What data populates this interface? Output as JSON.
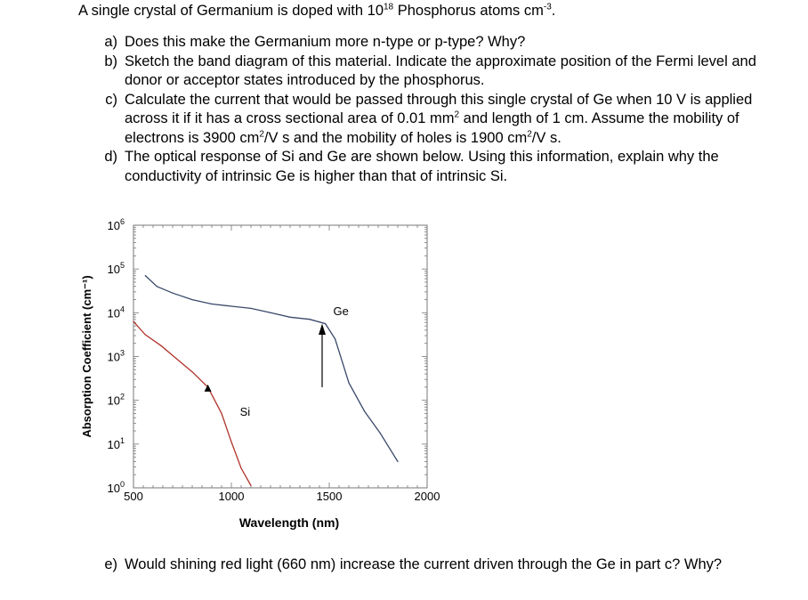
{
  "question": {
    "intro_pre": "A single crystal of Germanium is doped with 10",
    "intro_sup": "18",
    "intro_post": " Phosphorus atoms cm",
    "intro_sup2": "-3",
    "intro_end": ".",
    "parts": [
      {
        "label": "a)",
        "text": "Does this make the Germanium more n-type or p-type? Why?"
      },
      {
        "label": "b)",
        "text": "Sketch the band diagram of this material. Indicate the approximate position of the Fermi level and donor or acceptor states introduced by the phosphorus."
      },
      {
        "label": "c)",
        "text_html_parts": [
          "Calculate the current that would be passed through this single crystal of Ge when 10 V is applied across it if it has a cross sectional area of 0.01 mm",
          "2",
          " and length of 1 cm. Assume the mobility of electrons is 3900 cm",
          "2",
          "/V s and the mobility of holes is 1900 cm",
          "2",
          "/V s."
        ]
      },
      {
        "label": "d)",
        "text": "The optical response of Si and Ge are shown below. Using this information, explain why the conductivity of intrinsic Ge is higher than that of intrinsic Si."
      }
    ],
    "part_e": {
      "label": "e)",
      "text": "Would shining red light (660 nm) increase the current driven through the Ge in part c? Why?"
    }
  },
  "chart_data": {
    "type": "line",
    "xlabel": "Wavelength (nm)",
    "ylabel": "Absorption Coefficient (cm⁻¹)",
    "xlim": [
      500,
      2000
    ],
    "ylim_log10": [
      0,
      6
    ],
    "y_scale": "log",
    "x_ticks": [
      500,
      1000,
      1500,
      2000
    ],
    "y_tick_labels": [
      {
        "base": "10",
        "exp": "6"
      },
      {
        "base": "10",
        "exp": "5"
      },
      {
        "base": "10",
        "exp": "4"
      },
      {
        "base": "10",
        "exp": "3"
      },
      {
        "base": "10",
        "exp": "2"
      },
      {
        "base": "10",
        "exp": "1"
      },
      {
        "base": "10",
        "exp": "0"
      }
    ],
    "grid": false,
    "series": [
      {
        "name": "Ge",
        "color": "#3a4a6b",
        "x": [
          560,
          620,
          700,
          800,
          900,
          1000,
          1100,
          1200,
          1300,
          1400,
          1480,
          1530,
          1600,
          1680,
          1760,
          1850
        ],
        "y": [
          4.85,
          4.6,
          4.45,
          4.3,
          4.2,
          4.15,
          4.1,
          4.0,
          3.9,
          3.85,
          3.75,
          3.4,
          2.4,
          1.75,
          1.25,
          0.6
        ]
      },
      {
        "name": "Si",
        "color": "#b0332b",
        "x": [
          500,
          560,
          640,
          720,
          800,
          880,
          950,
          1000,
          1050,
          1100
        ],
        "y": [
          3.8,
          3.5,
          3.25,
          2.95,
          2.65,
          2.3,
          1.7,
          1.05,
          0.45,
          0.05
        ]
      }
    ]
  }
}
